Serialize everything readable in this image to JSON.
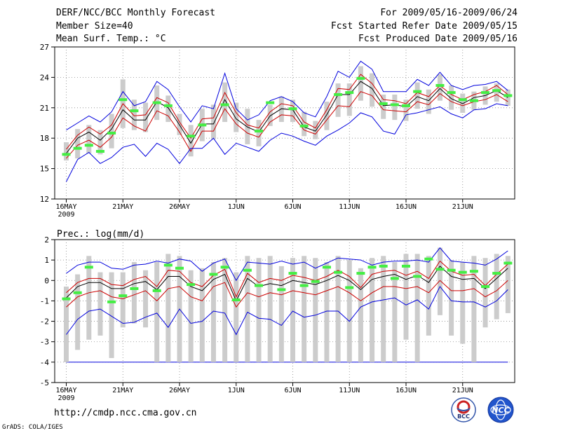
{
  "header": {
    "title": "DERF/NCC/BCC Monthly Forecast",
    "member_size": "Member Size=40",
    "variable": "Mean Surf. Temp.: °C",
    "period": "For 2009/05/16-2009/06/24",
    "refer_date": "Fcst Started Refer Date 2009/05/15",
    "produced_date": "Fcst Produced Date 2009/05/16"
  },
  "footer": {
    "url": "http://cmdp.ncc.cma.gov.cn",
    "credit": "GrADS: COLA/IGES",
    "logo_left_text": "BCC",
    "logo_right_text": "NCC"
  },
  "colors": {
    "envelope": "#0000dd",
    "quartile": "#cc0000",
    "median": "#000000",
    "box": "#cccccc",
    "observed": "#44ee44"
  },
  "chart_data": [
    {
      "type": "line",
      "title": "Mean Surf. Temp.: °C",
      "x_tick_labels": [
        "16MAY",
        "21MAY",
        "26MAY",
        "1JUN",
        "6JUN",
        "11JUN",
        "16JUN",
        "21JUN"
      ],
      "x_year_label": "2009",
      "ylim": [
        12,
        27
      ],
      "yticks": [
        12,
        15,
        18,
        21,
        24,
        27
      ],
      "series": [
        {
          "name": "max",
          "values": [
            18.8,
            19.5,
            20.2,
            19.6,
            20.6,
            22.6,
            21.2,
            21.6,
            23.6,
            22.8,
            21.1,
            19.6,
            21.2,
            20.9,
            24.4,
            20.9,
            19.8,
            20.3,
            21.7,
            22.1,
            21.6,
            20.5,
            20.1,
            22.1,
            24.6,
            24.0,
            25.6,
            24.8,
            22.6,
            22.6,
            22.6,
            23.8,
            23.2,
            24.5,
            23.2,
            22.8,
            23.2,
            23.3,
            23.6,
            22.7
          ]
        },
        {
          "name": "upper",
          "values": [
            16.9,
            18.3,
            19.1,
            18.4,
            19.3,
            21.4,
            20.2,
            20.3,
            22.0,
            21.5,
            19.6,
            18.0,
            19.9,
            20.0,
            22.5,
            20.5,
            19.3,
            19.0,
            20.6,
            21.4,
            21.2,
            19.6,
            19.0,
            20.8,
            22.9,
            22.8,
            24.3,
            23.4,
            21.8,
            21.7,
            21.4,
            22.5,
            22.1,
            23.2,
            22.3,
            21.8,
            22.3,
            22.6,
            23.2,
            22.3
          ]
        },
        {
          "name": "median",
          "values": [
            16.5,
            18.0,
            18.6,
            17.8,
            18.9,
            20.8,
            19.8,
            19.8,
            21.6,
            21.0,
            19.3,
            17.5,
            19.4,
            19.4,
            21.8,
            19.9,
            19.1,
            18.6,
            20.2,
            20.9,
            20.8,
            19.1,
            18.7,
            20.3,
            22.3,
            22.3,
            23.6,
            22.9,
            21.2,
            21.3,
            21.1,
            22.1,
            21.7,
            22.9,
            21.9,
            21.4,
            22.0,
            22.2,
            22.7,
            22.0
          ]
        },
        {
          "name": "lower",
          "values": [
            16.0,
            17.3,
            17.8,
            17.1,
            18.1,
            20.0,
            19.2,
            18.7,
            20.7,
            20.2,
            18.6,
            16.7,
            18.7,
            18.7,
            20.9,
            19.4,
            18.5,
            18.1,
            19.6,
            20.3,
            20.2,
            18.8,
            18.4,
            19.8,
            21.2,
            21.1,
            22.6,
            22.2,
            20.8,
            20.7,
            20.6,
            21.6,
            21.3,
            22.4,
            21.6,
            21.2,
            21.6,
            21.8,
            22.3,
            21.6
          ]
        },
        {
          "name": "min",
          "values": [
            13.7,
            15.9,
            16.6,
            15.5,
            16.1,
            17.1,
            17.4,
            16.2,
            17.5,
            16.9,
            15.5,
            17.0,
            17.0,
            18.0,
            16.4,
            17.5,
            17.1,
            16.7,
            17.8,
            18.5,
            18.2,
            17.7,
            17.3,
            18.2,
            18.8,
            19.5,
            20.5,
            20.1,
            18.7,
            18.4,
            20.3,
            20.5,
            20.8,
            21.1,
            20.4,
            20.0,
            20.8,
            20.9,
            21.4,
            21.2
          ]
        },
        {
          "name": "observed",
          "values": [
            16.4,
            17.0,
            17.3,
            16.7,
            18.5,
            21.8,
            20.7,
            null,
            21.5,
            21.2,
            null,
            18.2,
            19.3,
            null,
            21.3,
            null,
            null,
            18.7,
            21.5,
            null,
            20.9,
            19.2,
            null,
            null,
            22.3,
            22.5,
            23.9,
            null,
            21.4,
            21.3,
            21.2,
            22.6,
            null,
            23.2,
            22.5,
            21.8,
            21.7,
            22.5,
            22.7,
            22.2
          ]
        }
      ],
      "boxes_range": [
        [
          15.8,
          17.6
        ],
        [
          16.0,
          18.9
        ],
        [
          16.5,
          19.3
        ],
        [
          16.4,
          18.8
        ],
        [
          17.0,
          20.4
        ],
        [
          19.0,
          23.8
        ],
        [
          18.8,
          21.8
        ],
        [
          18.6,
          21.5
        ],
        [
          19.8,
          23.2
        ],
        [
          19.6,
          22.2
        ],
        [
          18.3,
          20.4
        ],
        [
          16.2,
          19.3
        ],
        [
          17.7,
          20.9
        ],
        [
          17.9,
          21.3
        ],
        [
          19.6,
          23.5
        ],
        [
          18.6,
          21.5
        ],
        [
          17.4,
          20.9
        ],
        [
          17.2,
          19.8
        ],
        [
          19.2,
          21.3
        ],
        [
          19.6,
          22.1
        ],
        [
          19.6,
          21.8
        ],
        [
          18.2,
          20.6
        ],
        [
          17.9,
          19.7
        ],
        [
          18.8,
          21.6
        ],
        [
          20.1,
          23.4
        ],
        [
          20.2,
          23.4
        ],
        [
          21.7,
          25.1
        ],
        [
          21.1,
          24.4
        ],
        [
          19.9,
          22.3
        ],
        [
          19.8,
          22.3
        ],
        [
          19.7,
          21.8
        ],
        [
          20.9,
          23.5
        ],
        [
          20.4,
          22.8
        ],
        [
          21.7,
          24.3
        ],
        [
          20.8,
          23.2
        ],
        [
          20.5,
          22.4
        ],
        [
          20.8,
          22.6
        ],
        [
          21.3,
          23.1
        ],
        [
          21.6,
          23.4
        ],
        [
          21.2,
          22.8
        ]
      ]
    },
    {
      "type": "line",
      "title": "Prec.: log(mm/d)",
      "x_tick_labels": [
        "16MAY",
        "21MAY",
        "26MAY",
        "1JUN",
        "6JUN",
        "11JUN",
        "16JUN",
        "21JUN"
      ],
      "x_year_label": "2009",
      "ylim": [
        -5,
        2
      ],
      "yticks": [
        -5,
        -4,
        -3,
        -2,
        -1,
        0,
        1,
        2
      ],
      "floor_line": -4,
      "series": [
        {
          "name": "max",
          "values": [
            0.35,
            0.75,
            0.9,
            0.9,
            0.6,
            0.55,
            0.75,
            0.8,
            0.95,
            0.85,
            1.05,
            0.95,
            0.45,
            0.85,
            1.05,
            0.0,
            0.9,
            0.85,
            0.8,
            0.95,
            0.8,
            0.9,
            0.6,
            0.85,
            1.1,
            1.05,
            1.0,
            0.75,
            0.9,
            0.95,
            0.95,
            1.0,
            0.9,
            1.6,
            0.95,
            0.9,
            0.85,
            0.75,
            1.05,
            1.45
          ]
        },
        {
          "name": "upper",
          "values": [
            -0.6,
            -0.1,
            0.1,
            0.1,
            -0.2,
            -0.25,
            0.05,
            0.2,
            -0.3,
            0.5,
            0.45,
            -0.1,
            -0.3,
            0.25,
            0.55,
            -0.8,
            0.35,
            -0.1,
            0.1,
            0.0,
            0.25,
            0.15,
            0.0,
            0.2,
            0.5,
            0.2,
            -0.35,
            0.3,
            0.45,
            0.5,
            0.25,
            0.45,
            0.1,
            0.95,
            0.45,
            0.25,
            0.3,
            -0.25,
            0.3,
            0.8
          ]
        },
        {
          "name": "median",
          "values": [
            -0.85,
            -0.3,
            -0.1,
            -0.1,
            -0.4,
            -0.4,
            -0.15,
            -0.05,
            -0.45,
            0.2,
            0.2,
            -0.3,
            -0.5,
            0.05,
            0.3,
            -1.0,
            0.1,
            -0.3,
            -0.15,
            -0.25,
            0.0,
            -0.1,
            -0.2,
            0.0,
            0.25,
            0.0,
            -0.45,
            0.05,
            0.2,
            0.3,
            0.05,
            0.25,
            -0.1,
            0.7,
            0.2,
            0.05,
            0.1,
            -0.4,
            0.1,
            0.6
          ]
        },
        {
          "name": "lower",
          "values": [
            -1.3,
            -0.8,
            -0.6,
            -0.5,
            -0.8,
            -0.9,
            -0.7,
            -0.5,
            -1.0,
            -0.4,
            -0.3,
            -0.8,
            -1.0,
            -0.3,
            -0.1,
            -1.3,
            -0.6,
            -0.8,
            -0.6,
            -0.7,
            -0.5,
            -0.6,
            -0.7,
            -0.5,
            -0.3,
            -0.6,
            -1.0,
            -0.6,
            -0.3,
            -0.3,
            -0.4,
            -0.3,
            -0.6,
            0.0,
            -0.5,
            -0.5,
            -0.4,
            -0.8,
            -0.5,
            0.0
          ]
        },
        {
          "name": "min",
          "values": [
            -2.65,
            -1.9,
            -1.5,
            -1.4,
            -1.75,
            -2.1,
            -2.05,
            -1.8,
            -1.6,
            -2.3,
            -1.4,
            -2.1,
            -2.0,
            -1.5,
            -1.6,
            -2.65,
            -1.55,
            -1.85,
            -1.9,
            -2.2,
            -1.5,
            -1.8,
            -1.7,
            -1.5,
            -1.5,
            -2.0,
            -1.3,
            -1.05,
            -0.95,
            -0.85,
            -1.2,
            -0.95,
            -1.4,
            -0.3,
            -1.0,
            -1.05,
            -1.05,
            -1.3,
            -1.0,
            -0.45
          ]
        },
        {
          "name": "observed",
          "values": [
            -0.9,
            -0.6,
            0.65,
            null,
            -1.05,
            -0.75,
            -0.4,
            null,
            -0.5,
            0.75,
            0.6,
            -0.2,
            null,
            0.3,
            0.65,
            -0.95,
            0.5,
            -0.25,
            null,
            -0.45,
            0.35,
            -0.25,
            -0.05,
            0.65,
            0.4,
            -0.35,
            0.35,
            0.65,
            0.7,
            0.1,
            0.7,
            0.2,
            1.05,
            0.55,
            0.5,
            0.4,
            0.45,
            -0.3,
            0.35,
            0.85
          ]
        }
      ],
      "boxes_range": [
        [
          -4,
          -0.3
        ],
        [
          -3.4,
          0.3
        ],
        [
          -2.9,
          1.2
        ],
        [
          -2.7,
          0.4
        ],
        [
          -3.8,
          0.4
        ],
        [
          -2.3,
          0.4
        ],
        [
          -2.1,
          0.9
        ],
        [
          -2.3,
          0.5
        ],
        [
          -4,
          0.9
        ],
        [
          -4,
          1.3
        ],
        [
          -4,
          1.2
        ],
        [
          -4,
          0.5
        ],
        [
          -4,
          0.6
        ],
        [
          -4,
          0.9
        ],
        [
          -4,
          1.1
        ],
        [
          -4,
          0.4
        ],
        [
          -4,
          1.2
        ],
        [
          -4,
          1.1
        ],
        [
          -4,
          1.2
        ],
        [
          -4,
          0.7
        ],
        [
          -4,
          1.1
        ],
        [
          -4,
          1.2
        ],
        [
          -4,
          1.1
        ],
        [
          -4,
          0.9
        ],
        [
          -4,
          1.2
        ],
        [
          -4,
          1.0
        ],
        [
          -4,
          0.6
        ],
        [
          -4,
          1.1
        ],
        [
          -4,
          1.2
        ],
        [
          -4,
          0.9
        ],
        [
          -2.9,
          1.3
        ],
        [
          -4,
          1.3
        ],
        [
          -2.7,
          1.2
        ],
        [
          -1.7,
          1.6
        ],
        [
          -2.7,
          1.0
        ],
        [
          -3.1,
          0.9
        ],
        [
          -4,
          1.2
        ],
        [
          -2.3,
          1.1
        ],
        [
          -1.9,
          1.3
        ],
        [
          -1.6,
          1.2
        ]
      ]
    }
  ]
}
